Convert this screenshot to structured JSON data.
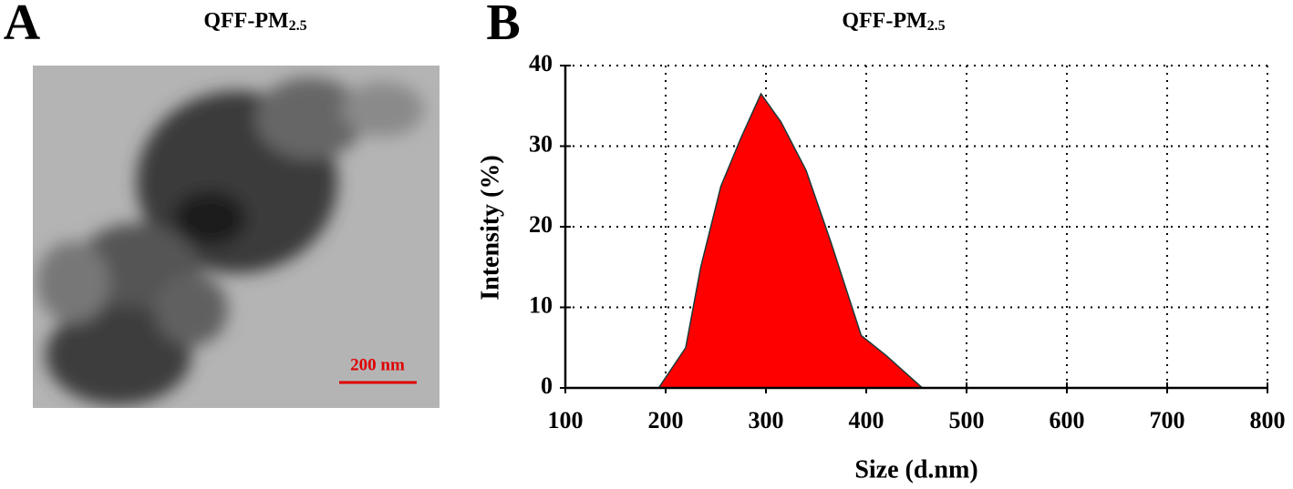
{
  "panel_a": {
    "label": "A",
    "title": {
      "text": "QFF-PM",
      "subscript": "2.5"
    },
    "scale_bar": "200 nm"
  },
  "chart_data": {
    "type": "area",
    "label": "B",
    "title": {
      "text": "QFF-PM",
      "subscript": "2.5"
    },
    "x_label": "Size (d.nm)",
    "y_label": "Intensity (%)",
    "x": [
      193,
      220,
      235,
      255,
      275,
      295,
      315,
      340,
      365,
      395,
      420,
      456,
      800
    ],
    "values": [
      0,
      5,
      15,
      25,
      31,
      36.5,
      33,
      27,
      18,
      6.5,
      4,
      0,
      0
    ],
    "color": "#ff0000",
    "xlim": [
      100,
      800
    ],
    "xticks": [
      100,
      200,
      300,
      400,
      500,
      600,
      700,
      800
    ],
    "ylim": [
      0,
      40
    ],
    "yticks": [
      0,
      10,
      20,
      30,
      40
    ],
    "grid": true
  }
}
